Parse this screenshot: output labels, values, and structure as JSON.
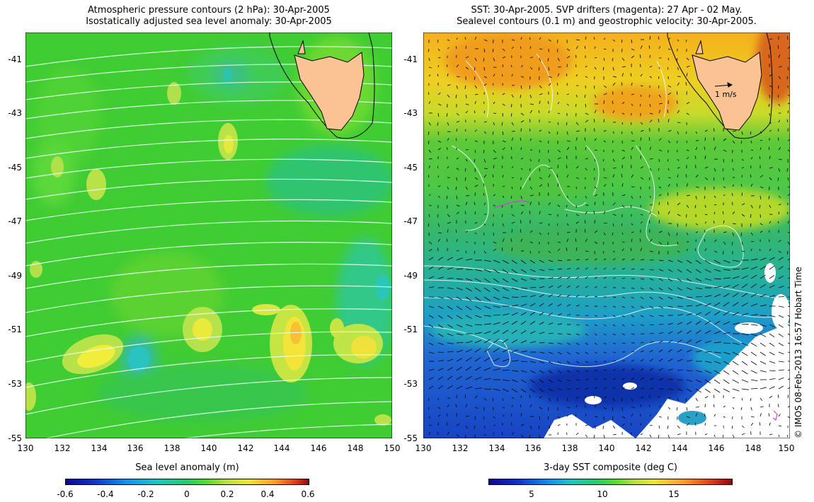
{
  "left_panel": {
    "title_line1": "Atmospheric pressure contours (2 hPa): 30-Apr-2005",
    "title_line2": "Isostatically adjusted sea level anomaly: 30-Apr-2005",
    "colorbar_label": "Sea level anomaly (m)",
    "colorbar_ticks": [
      "-0.6",
      "-0.4",
      "-0.2",
      "0",
      "0.2",
      "0.4",
      "0.6"
    ]
  },
  "right_panel": {
    "title_line1": "SST: 30-Apr-2005. SVP drifters (magenta): 27 Apr - 02 May.",
    "title_line2": "Sealevel contours (0.1 m) and geostrophic velocity: 30-Apr-2005.",
    "colorbar_label": "3-day SST composite (deg C)",
    "colorbar_ticks": [
      "5",
      "10",
      "15"
    ],
    "velocity_scale_label": "1 m/s"
  },
  "axes": {
    "lat_ticks": [
      "-41",
      "-43",
      "-45",
      "-47",
      "-49",
      "-51",
      "-53",
      "-55"
    ],
    "lon_ticks": [
      "130",
      "132",
      "134",
      "136",
      "138",
      "140",
      "142",
      "144",
      "146",
      "148",
      "150"
    ]
  },
  "credit": "© IMOS 08-Feb-2013 16:57 Hobart Time",
  "colors": {
    "land": "#f9c393",
    "slm_base": "#3ccf2f",
    "sst_warm": "#f2a218",
    "sst_cold": "#1a4ec9"
  }
}
